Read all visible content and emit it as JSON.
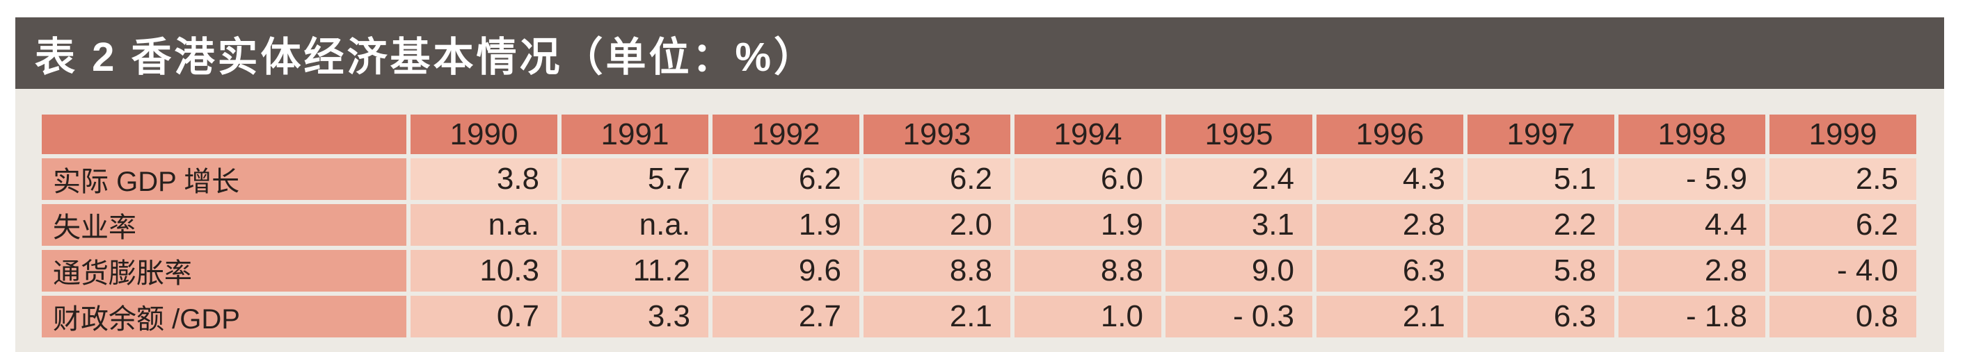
{
  "title": "表 2 香港实体经济基本情况（单位：%）",
  "table": {
    "corner_label": "",
    "years": [
      "1990",
      "1991",
      "1992",
      "1993",
      "1994",
      "1995",
      "1996",
      "1997",
      "1998",
      "1999"
    ],
    "rows": [
      {
        "label": "实际 GDP 增长",
        "values": [
          "3.8",
          "5.7",
          "6.2",
          "6.2",
          "6.0",
          "2.4",
          "4.3",
          "5.1",
          "- 5.9",
          "2.5"
        ]
      },
      {
        "label": "失业率",
        "values": [
          "n.a.",
          "n.a.",
          "1.9",
          "2.0",
          "1.9",
          "3.1",
          "2.8",
          "2.2",
          "4.4",
          "6.2"
        ]
      },
      {
        "label": "通货膨胀率",
        "values": [
          "10.3",
          "11.2",
          "9.6",
          "8.8",
          "8.8",
          "9.0",
          "6.3",
          "5.8",
          "2.8",
          "- 4.0"
        ]
      },
      {
        "label": "财政余额 /GDP",
        "values": [
          "0.7",
          "3.3",
          "2.7",
          "2.1",
          "1.0",
          "- 0.3",
          "2.1",
          "6.3",
          "- 1.8",
          "0.8"
        ]
      }
    ]
  },
  "chart_data": {
    "type": "table",
    "title": "表 2 香港实体经济基本情况（单位：%）",
    "columns": [
      "",
      "1990",
      "1991",
      "1992",
      "1993",
      "1994",
      "1995",
      "1996",
      "1997",
      "1998",
      "1999"
    ],
    "rows": [
      [
        "实际 GDP 增长",
        3.8,
        5.7,
        6.2,
        6.2,
        6.0,
        2.4,
        4.3,
        5.1,
        -5.9,
        2.5
      ],
      [
        "失业率",
        "n.a.",
        "n.a.",
        1.9,
        2.0,
        1.9,
        3.1,
        2.8,
        2.2,
        4.4,
        6.2
      ],
      [
        "通货膨胀率",
        10.3,
        11.2,
        9.6,
        8.8,
        8.8,
        9.0,
        6.3,
        5.8,
        2.8,
        -4.0
      ],
      [
        "财政余额 /GDP",
        0.7,
        3.3,
        2.7,
        2.1,
        1.0,
        -0.3,
        2.1,
        6.3,
        -1.8,
        0.8
      ]
    ]
  },
  "colors": {
    "title_bar_bg": "#595350",
    "title_text": "#ffffff",
    "panel_bg": "#edeae4",
    "header_cell_bg": "#e0816e",
    "row_label_bg": "#eba28f",
    "value_cell_light_bg": "#f8d3c3",
    "value_cell_bg": "#f5c7b6",
    "cell_text": "#27201d"
  }
}
